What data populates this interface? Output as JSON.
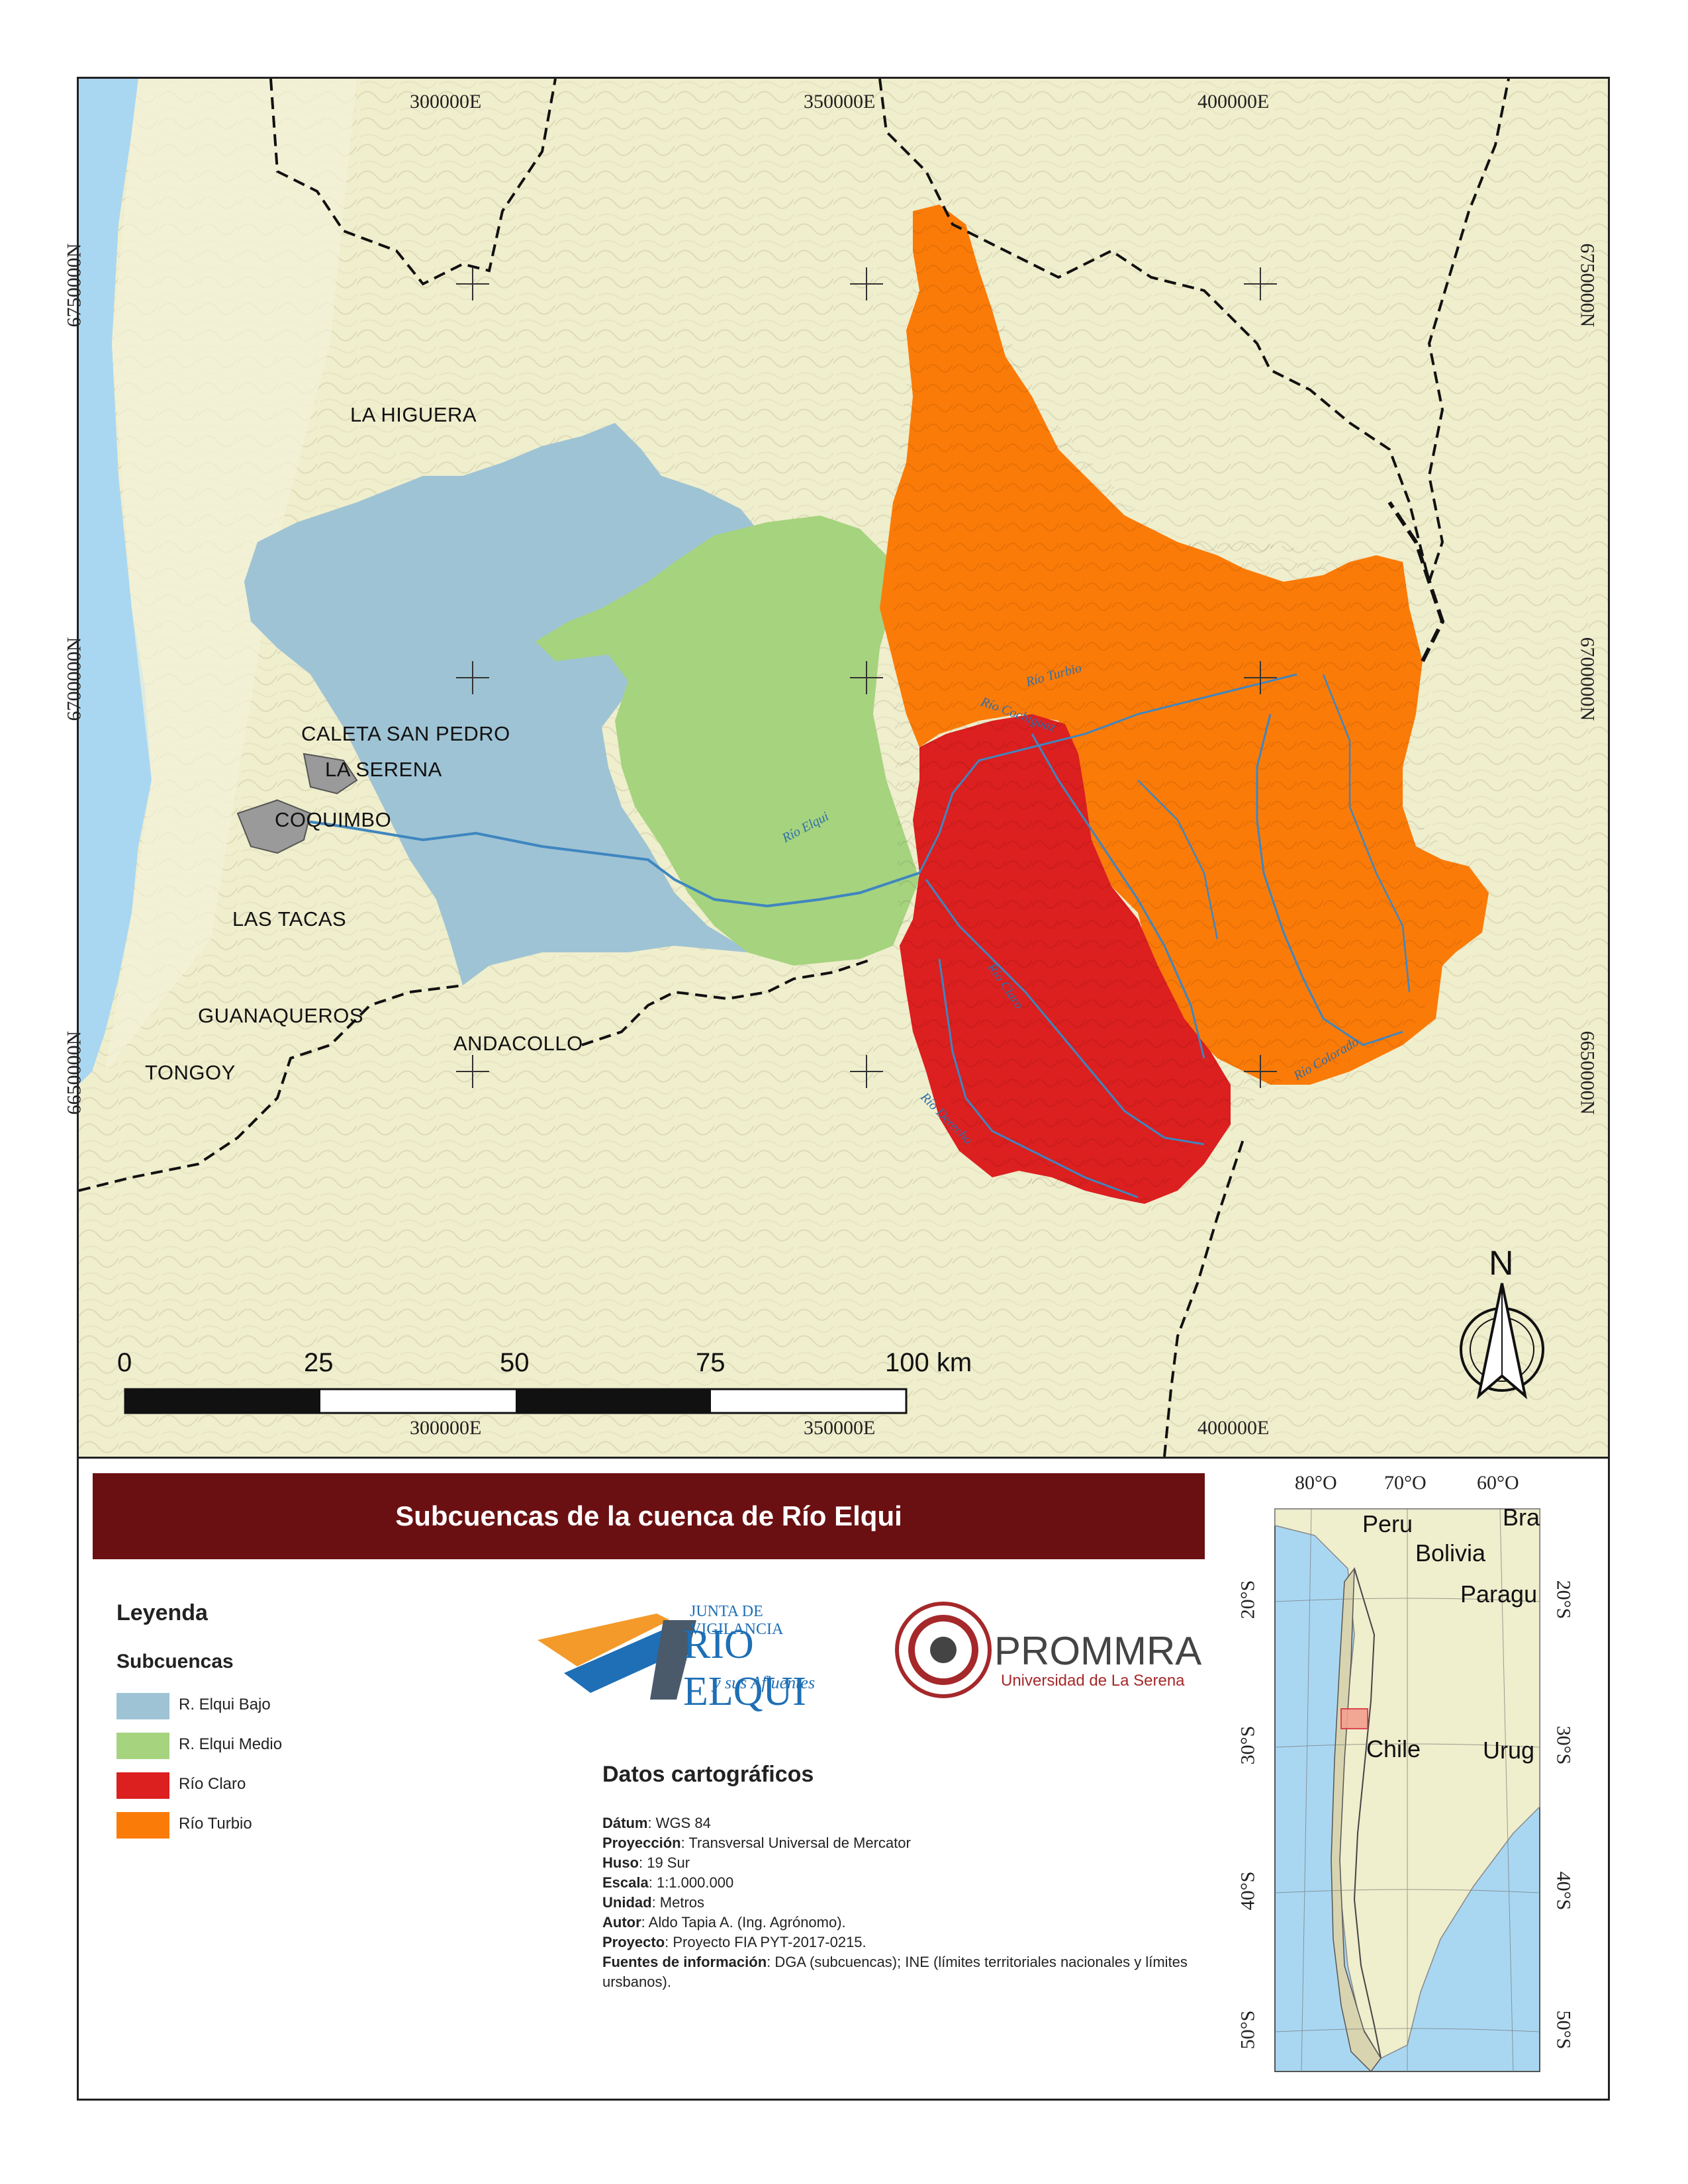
{
  "map": {
    "coords_top": [
      "300000E",
      "350000E",
      "400000E"
    ],
    "coords_bottom": [
      "300000E",
      "350000E",
      "400000E"
    ],
    "coords_left": [
      "6750000N",
      "6700000N",
      "6650000N"
    ],
    "coords_right": [
      "6750000N",
      "6700000N",
      "6650000N"
    ],
    "towns": [
      "LA HIGUERA",
      "CALETA SAN PEDRO",
      "LA SERENA",
      "COQUIMBO",
      "LAS TACAS",
      "GUANAQUEROS",
      "ANDACOLLO",
      "TONGOY"
    ],
    "rivers": [
      "Río Elqui",
      "Río Cochiguaz",
      "Río Claro",
      "Río Colorado",
      "Río Turbio",
      "Río Derecho"
    ],
    "north_label": "N",
    "scale_labels": [
      "0",
      "25",
      "50",
      "75",
      "100 km"
    ],
    "colors": {
      "land": "#efeecd",
      "sea": "#a9d7f2",
      "bajo": "#9ec3d4",
      "medio": "#a6d37e",
      "claro": "#dc1f1f",
      "turbio": "#fb7b08",
      "urban": "#9a9a9a"
    }
  },
  "title": "Subcuencas de la cuenca de Río Elqui",
  "legend": {
    "heading": "Leyenda",
    "subheading": "Subcuencas",
    "items": [
      {
        "label": "R. Elqui Bajo",
        "color": "#9ec3d4"
      },
      {
        "label": "R. Elqui Medio",
        "color": "#a6d37e"
      },
      {
        "label": "Río Claro",
        "color": "#dc1f1f"
      },
      {
        "label": "Río Turbio",
        "color": "#fb7b08"
      }
    ]
  },
  "logos": {
    "jv_line1": "JUNTA DE VIGILANCIA",
    "jv_line2": "RIO ELQUI",
    "jv_line3": "y sus Afluentes",
    "prommra_name": "PROMMRA",
    "prommra_sub": "Universidad de La Serena"
  },
  "datos": {
    "heading": "Datos cartográficos",
    "datum_k": "Dátum",
    "datum_v": ": WGS 84",
    "proy_k": "Proyección",
    "proy_v": ": Transversal Universal de Mercator",
    "huso_k": "Huso",
    "huso_v": ": 19 Sur",
    "escala_k": "Escala",
    "escala_v": ": 1:1.000.000",
    "unidad_k": "Unidad",
    "unidad_v": ": Metros",
    "autor_k": "Autor",
    "autor_v": ": Aldo Tapia A. (Ing. Agrónomo).",
    "proyecto_k": "Proyecto",
    "proyecto_v": ": Proyecto FIA PYT-2017-0215.",
    "fuentes_k": "Fuentes de información",
    "fuentes_v": ": DGA (subcuencas); INE (límites territoriales nacionales y límites ursbanos)."
  },
  "inset": {
    "top_labels": [
      "80°O",
      "70°O",
      "60°O"
    ],
    "left_labels": [
      "20°S",
      "30°S",
      "40°S",
      "50°S"
    ],
    "right_labels": [
      "20°S",
      "30°S",
      "40°S",
      "50°S"
    ],
    "countries": [
      "Peru",
      "Bra",
      "Bolivia",
      "Paragu",
      "Chile",
      "Urug"
    ]
  }
}
